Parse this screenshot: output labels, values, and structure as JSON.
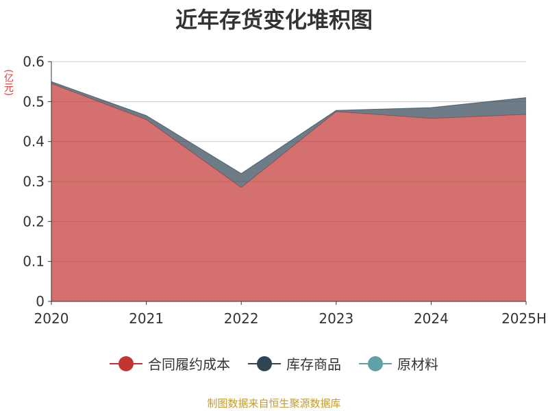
{
  "title": "近年存货变化堆积图",
  "unit": "(亿元)",
  "footer": "制图数据来自恒生聚源数据库",
  "chart_data": {
    "type": "area",
    "stacked": true,
    "title": "近年存货变化堆积图",
    "ylabel": "(亿元)",
    "categories": [
      "2020",
      "2021",
      "2022",
      "2023",
      "2024",
      "2025H"
    ],
    "ylim": [
      0,
      0.6
    ],
    "yticks": [
      0,
      0.1,
      0.2,
      0.3,
      0.4,
      0.5,
      0.6
    ],
    "ytick_labels": [
      "0",
      "0.1",
      "0.2",
      "0.3",
      "0.4",
      "0.5",
      "0.6"
    ],
    "grid": true,
    "legend_position": "bottom",
    "series": [
      {
        "name": "合同履约成本",
        "color": "#c23531",
        "values": [
          0.545,
          0.455,
          0.285,
          0.475,
          0.458,
          0.468
        ]
      },
      {
        "name": "库存商品",
        "color": "#2f4554",
        "values": [
          0.005,
          0.01,
          0.035,
          0.003,
          0.027,
          0.042
        ]
      },
      {
        "name": "原材料",
        "color": "#61a0a8",
        "values": [
          0,
          0,
          0,
          0,
          0,
          0
        ]
      }
    ]
  }
}
